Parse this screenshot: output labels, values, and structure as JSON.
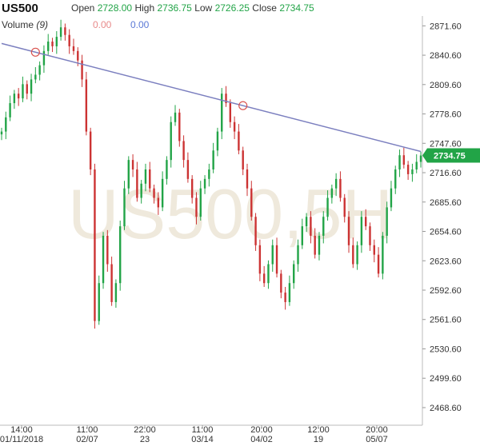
{
  "header": {
    "symbol": "US500",
    "open_label": "Open",
    "open_value": "2728.00",
    "high_label": "High",
    "high_value": "2736.75",
    "low_label": "Low",
    "low_value": "2726.25",
    "close_label": "Close",
    "close_value": "2734.75",
    "volume_label": "Volume",
    "volume_param": "(9)",
    "volume_value_1": "0.00",
    "volume_value_2": "0.00"
  },
  "colors": {
    "up": "#22a447",
    "down": "#cc3333",
    "trendline": "#7b7fbf",
    "price_tag": "#22a447",
    "watermark": "#efe9dc"
  },
  "chart_data": {
    "type": "candlestick",
    "watermark": "US500,5H",
    "current_price": "2734.75",
    "ylim": [
      2450,
      2882
    ],
    "y_ticks": [
      "2871.60",
      "2840.60",
      "2809.60",
      "2778.60",
      "2747.60",
      "2716.60",
      "2685.60",
      "2654.60",
      "2623.60",
      "2592.60",
      "2561.60",
      "2530.60",
      "2499.60",
      "2468.60"
    ],
    "x_ticks": [
      {
        "time": "14:00",
        "date": "01/11/2018"
      },
      {
        "time": "11:00",
        "date": "02/07"
      },
      {
        "time": "22:00",
        "date": "23"
      },
      {
        "time": "11:00",
        "date": "03/14"
      },
      {
        "time": "20:00",
        "date": "04/02"
      },
      {
        "time": "12:00",
        "date": "19"
      },
      {
        "time": "20:00",
        "date": "05/07"
      }
    ],
    "series": [
      {
        "values": [
          2760,
          2775,
          2790,
          2800,
          2795,
          2810,
          2800,
          2815,
          2820,
          2830,
          2845,
          2855,
          2850,
          2860,
          2870,
          2862,
          2850,
          2845,
          2835,
          2815,
          2760,
          2720,
          2560,
          2600,
          2650,
          2620,
          2580,
          2600,
          2660,
          2700,
          2730,
          2720,
          2690,
          2705,
          2720,
          2700,
          2690,
          2680,
          2710,
          2730,
          2770,
          2780,
          2750,
          2730,
          2710,
          2690,
          2670,
          2700,
          2710,
          2720,
          2740,
          2760,
          2800,
          2790,
          2770,
          2760,
          2740,
          2720,
          2700,
          2670,
          2640,
          2610,
          2600,
          2620,
          2640,
          2610,
          2590,
          2580,
          2600,
          2620,
          2640,
          2660,
          2670,
          2650,
          2630,
          2650,
          2670,
          2690,
          2700,
          2710,
          2690,
          2670,
          2640,
          2620,
          2640,
          2670,
          2660,
          2640,
          2630,
          2610,
          2650,
          2680,
          2700,
          2720,
          2735,
          2725,
          2715,
          2720,
          2728,
          2734.75
        ]
      }
    ],
    "trendline": {
      "start": [
        0,
        2853
      ],
      "end": [
        99,
        2739
      ],
      "markers": [
        8,
        57
      ]
    }
  }
}
